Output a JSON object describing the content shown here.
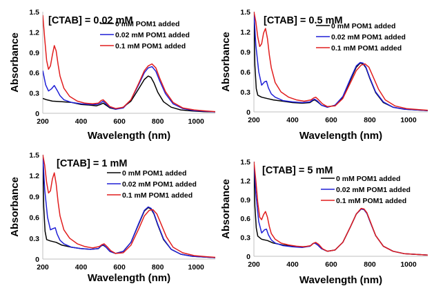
{
  "chart_data": [
    {
      "type": "line",
      "title": "[CTAB] = 0.02 mM",
      "xlabel": "Wavelength (nm)",
      "ylabel": "Absorbance",
      "xlim": [
        200,
        1100
      ],
      "ylim": [
        0,
        1.5
      ],
      "xticks": [
        200,
        400,
        600,
        800,
        1000
      ],
      "yticks": [
        0,
        0.3,
        0.6,
        0.9,
        1.2,
        1.5
      ],
      "ytick_labels": [
        "0",
        "0.3",
        "0.6",
        "0.9",
        "1.2",
        "1.5"
      ],
      "grid": false,
      "legend": "top-right",
      "series": [
        {
          "name": "0 mM POM1 added",
          "color": "#000000",
          "x": [
            200,
            220,
            250,
            300,
            350,
            400,
            450,
            480,
            500,
            515,
            530,
            550,
            580,
            620,
            660,
            700,
            730,
            750,
            765,
            780,
            800,
            830,
            870,
            920,
            980,
            1040,
            1100
          ],
          "y": [
            0.22,
            0.2,
            0.18,
            0.17,
            0.16,
            0.13,
            0.12,
            0.11,
            0.13,
            0.15,
            0.12,
            0.08,
            0.06,
            0.09,
            0.18,
            0.36,
            0.5,
            0.55,
            0.53,
            0.45,
            0.31,
            0.17,
            0.09,
            0.05,
            0.035,
            0.025,
            0.02
          ]
        },
        {
          "name": "0.02 mM POM1 added",
          "color": "#1f1fd6",
          "x": [
            200,
            215,
            230,
            245,
            260,
            275,
            290,
            310,
            350,
            400,
            450,
            480,
            500,
            515,
            530,
            550,
            580,
            620,
            660,
            700,
            730,
            750,
            770,
            790,
            810,
            840,
            880,
            930,
            990,
            1050,
            1100
          ],
          "y": [
            0.63,
            0.42,
            0.33,
            0.36,
            0.41,
            0.34,
            0.26,
            0.2,
            0.16,
            0.14,
            0.13,
            0.13,
            0.15,
            0.18,
            0.14,
            0.09,
            0.06,
            0.08,
            0.2,
            0.42,
            0.6,
            0.67,
            0.69,
            0.62,
            0.48,
            0.29,
            0.14,
            0.07,
            0.04,
            0.03,
            0.02
          ]
        },
        {
          "name": "0.1 mM POM1 added",
          "color": "#e11d1d",
          "x": [
            200,
            210,
            220,
            230,
            240,
            250,
            260,
            270,
            280,
            290,
            310,
            340,
            380,
            420,
            460,
            490,
            505,
            515,
            530,
            550,
            580,
            620,
            660,
            700,
            730,
            750,
            770,
            790,
            810,
            840,
            880,
            930,
            990,
            1050,
            1100
          ],
          "y": [
            1.45,
            1.1,
            0.78,
            0.65,
            0.7,
            0.86,
            1.0,
            0.92,
            0.72,
            0.55,
            0.37,
            0.25,
            0.18,
            0.15,
            0.14,
            0.15,
            0.19,
            0.2,
            0.16,
            0.1,
            0.07,
            0.09,
            0.2,
            0.44,
            0.63,
            0.7,
            0.73,
            0.67,
            0.52,
            0.32,
            0.16,
            0.08,
            0.05,
            0.035,
            0.025
          ]
        }
      ]
    },
    {
      "type": "line",
      "title": "[CTAB] = 0.5 mM",
      "xlabel": "Wavelength (nm)",
      "ylabel": "Absorbance",
      "xlim": [
        200,
        1100
      ],
      "ylim": [
        0,
        1.5
      ],
      "xticks": [
        200,
        400,
        600,
        800,
        1000
      ],
      "yticks": [
        0,
        0.3,
        0.6,
        0.9,
        1.2,
        1.5
      ],
      "ytick_labels": [
        "0",
        "0.3",
        "0.6",
        "0.9",
        "1.2",
        "1.5"
      ],
      "grid": false,
      "legend": "top-right",
      "series": [
        {
          "name": "0 mM POM1 added",
          "color": "#000000",
          "x": [
            200,
            205,
            212,
            220,
            240,
            270,
            300,
            350,
            400,
            450,
            490,
            505,
            515,
            530,
            550,
            580,
            620,
            660,
            700,
            730,
            750,
            765,
            780,
            800,
            830,
            870,
            920,
            980,
            1040,
            1100
          ],
          "y": [
            1.5,
            0.7,
            0.35,
            0.25,
            0.22,
            0.2,
            0.18,
            0.16,
            0.14,
            0.13,
            0.14,
            0.17,
            0.18,
            0.15,
            0.1,
            0.07,
            0.1,
            0.22,
            0.48,
            0.67,
            0.73,
            0.72,
            0.66,
            0.5,
            0.29,
            0.14,
            0.07,
            0.04,
            0.03,
            0.02
          ]
        },
        {
          "name": "0.02 mM POM1 added",
          "color": "#1f1fd6",
          "x": [
            200,
            210,
            225,
            240,
            255,
            265,
            275,
            290,
            310,
            350,
            400,
            450,
            490,
            505,
            515,
            530,
            550,
            580,
            620,
            660,
            700,
            730,
            750,
            765,
            780,
            800,
            830,
            870,
            920,
            980,
            1040,
            1100
          ],
          "y": [
            1.5,
            1.0,
            0.6,
            0.4,
            0.45,
            0.46,
            0.36,
            0.27,
            0.22,
            0.17,
            0.15,
            0.14,
            0.15,
            0.18,
            0.19,
            0.16,
            0.1,
            0.07,
            0.1,
            0.23,
            0.5,
            0.69,
            0.74,
            0.73,
            0.67,
            0.51,
            0.3,
            0.15,
            0.07,
            0.04,
            0.03,
            0.02
          ]
        },
        {
          "name": "0.1 mM POM1 added",
          "color": "#e11d1d",
          "x": [
            200,
            210,
            220,
            230,
            240,
            250,
            260,
            270,
            280,
            290,
            310,
            340,
            380,
            420,
            460,
            495,
            510,
            520,
            535,
            555,
            580,
            620,
            660,
            700,
            730,
            755,
            775,
            795,
            815,
            845,
            880,
            930,
            990,
            1050,
            1100
          ],
          "y": [
            1.5,
            1.35,
            1.12,
            0.98,
            1.02,
            1.18,
            1.25,
            1.1,
            0.85,
            0.66,
            0.44,
            0.3,
            0.22,
            0.18,
            0.16,
            0.18,
            0.21,
            0.22,
            0.18,
            0.12,
            0.08,
            0.09,
            0.2,
            0.44,
            0.62,
            0.7,
            0.72,
            0.67,
            0.54,
            0.34,
            0.18,
            0.09,
            0.05,
            0.035,
            0.025
          ]
        }
      ]
    },
    {
      "type": "line",
      "title": "[CTAB] = 1 mM",
      "xlabel": "Wavelength (nm)",
      "ylabel": "Absorbance",
      "xlim": [
        200,
        1100
      ],
      "ylim": [
        0,
        1.5
      ],
      "xticks": [
        200,
        400,
        600,
        800,
        1000
      ],
      "yticks": [
        0,
        0.3,
        0.6,
        0.9,
        1.2,
        1.5
      ],
      "ytick_labels": [
        "0",
        "0.3",
        "0.6",
        "0.9",
        "1.2",
        "1.5"
      ],
      "grid": false,
      "legend": "top-right",
      "series": [
        {
          "name": "0 mM POM1 added",
          "color": "#000000",
          "x": [
            200,
            205,
            212,
            220,
            240,
            270,
            300,
            350,
            400,
            450,
            490,
            505,
            515,
            530,
            550,
            580,
            620,
            660,
            700,
            730,
            750,
            765,
            780,
            800,
            830,
            870,
            920,
            980,
            1040,
            1100
          ],
          "y": [
            1.5,
            0.75,
            0.4,
            0.28,
            0.26,
            0.24,
            0.2,
            0.17,
            0.15,
            0.14,
            0.15,
            0.19,
            0.2,
            0.17,
            0.11,
            0.08,
            0.11,
            0.24,
            0.5,
            0.69,
            0.74,
            0.72,
            0.65,
            0.49,
            0.28,
            0.14,
            0.07,
            0.04,
            0.03,
            0.02
          ]
        },
        {
          "name": "0.02 mM POM1 added",
          "color": "#1f1fd6",
          "x": [
            200,
            210,
            225,
            240,
            255,
            265,
            275,
            290,
            310,
            350,
            400,
            450,
            490,
            505,
            515,
            530,
            550,
            580,
            620,
            660,
            700,
            730,
            750,
            765,
            780,
            800,
            830,
            870,
            920,
            980,
            1040,
            1100
          ],
          "y": [
            1.5,
            1.0,
            0.6,
            0.42,
            0.44,
            0.45,
            0.36,
            0.27,
            0.22,
            0.17,
            0.15,
            0.14,
            0.15,
            0.19,
            0.21,
            0.17,
            0.11,
            0.08,
            0.11,
            0.24,
            0.51,
            0.7,
            0.75,
            0.73,
            0.66,
            0.5,
            0.29,
            0.14,
            0.07,
            0.04,
            0.03,
            0.02
          ]
        },
        {
          "name": "0.1 mM POM1 added",
          "color": "#e11d1d",
          "x": [
            200,
            210,
            220,
            230,
            240,
            250,
            260,
            270,
            280,
            290,
            310,
            340,
            380,
            420,
            460,
            495,
            510,
            520,
            535,
            555,
            580,
            620,
            660,
            700,
            730,
            755,
            775,
            795,
            815,
            845,
            880,
            930,
            990,
            1050,
            1100
          ],
          "y": [
            1.5,
            1.35,
            1.1,
            0.95,
            0.98,
            1.15,
            1.24,
            1.08,
            0.82,
            0.62,
            0.42,
            0.3,
            0.22,
            0.18,
            0.16,
            0.18,
            0.21,
            0.22,
            0.18,
            0.12,
            0.08,
            0.09,
            0.2,
            0.43,
            0.62,
            0.7,
            0.71,
            0.65,
            0.52,
            0.32,
            0.17,
            0.09,
            0.05,
            0.035,
            0.025
          ]
        }
      ]
    },
    {
      "type": "line",
      "title": "[CTAB] = 5 mM",
      "xlabel": "Wavelength (nm)",
      "ylabel": "Absorbance",
      "xlim": [
        200,
        1100
      ],
      "ylim": [
        0,
        1.5
      ],
      "xticks": [
        200,
        400,
        600,
        800,
        1000
      ],
      "yticks": [
        0,
        0.3,
        0.6,
        0.9,
        1.2,
        1.5
      ],
      "ytick_labels": [
        "0",
        "0.3",
        "0.6",
        "0.9",
        "1.2",
        "1.5"
      ],
      "grid": false,
      "legend": "top-right",
      "series": [
        {
          "name": "0 mM POM1 added",
          "color": "#000000",
          "x": [
            200,
            205,
            212,
            220,
            240,
            270,
            300,
            350,
            400,
            450,
            490,
            505,
            515,
            530,
            550,
            580,
            620,
            660,
            700,
            730,
            755,
            770,
            785,
            800,
            830,
            870,
            920,
            980,
            1040,
            1100
          ],
          "y": [
            1.5,
            0.8,
            0.45,
            0.32,
            0.27,
            0.25,
            0.21,
            0.18,
            0.16,
            0.15,
            0.16,
            0.2,
            0.21,
            0.18,
            0.12,
            0.08,
            0.1,
            0.22,
            0.47,
            0.67,
            0.75,
            0.74,
            0.68,
            0.56,
            0.33,
            0.16,
            0.08,
            0.04,
            0.03,
            0.02
          ]
        },
        {
          "name": "0.02 mM POM1 added",
          "color": "#1f1fd6",
          "x": [
            200,
            210,
            225,
            240,
            255,
            265,
            275,
            290,
            310,
            350,
            400,
            450,
            490,
            505,
            515,
            530,
            550,
            580,
            620,
            660,
            700,
            730,
            755,
            770,
            785,
            800,
            830,
            870,
            920,
            980,
            1040,
            1100
          ],
          "y": [
            1.5,
            1.0,
            0.55,
            0.37,
            0.42,
            0.43,
            0.34,
            0.26,
            0.21,
            0.17,
            0.15,
            0.14,
            0.16,
            0.2,
            0.21,
            0.18,
            0.12,
            0.08,
            0.1,
            0.22,
            0.47,
            0.67,
            0.75,
            0.74,
            0.68,
            0.56,
            0.33,
            0.16,
            0.08,
            0.04,
            0.03,
            0.02
          ]
        },
        {
          "name": "0.1 mM POM1 added",
          "color": "#e11d1d",
          "x": [
            200,
            210,
            220,
            230,
            240,
            250,
            260,
            270,
            280,
            290,
            310,
            340,
            380,
            420,
            460,
            495,
            510,
            520,
            535,
            555,
            580,
            620,
            660,
            700,
            730,
            755,
            770,
            785,
            800,
            830,
            870,
            920,
            980,
            1040,
            1100
          ],
          "y": [
            1.5,
            1.2,
            0.85,
            0.62,
            0.58,
            0.66,
            0.71,
            0.62,
            0.47,
            0.36,
            0.27,
            0.21,
            0.18,
            0.16,
            0.15,
            0.17,
            0.21,
            0.22,
            0.19,
            0.12,
            0.08,
            0.1,
            0.22,
            0.47,
            0.67,
            0.76,
            0.75,
            0.69,
            0.57,
            0.33,
            0.16,
            0.08,
            0.04,
            0.03,
            0.02
          ]
        }
      ]
    }
  ]
}
